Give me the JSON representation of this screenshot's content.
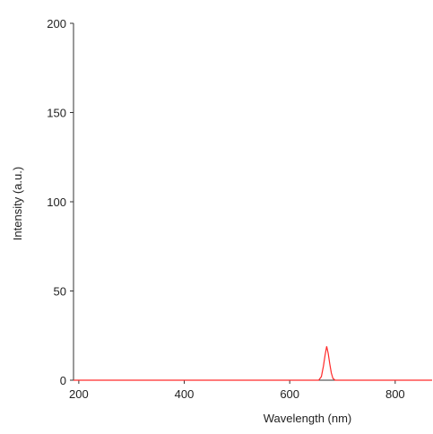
{
  "chart_data": {
    "type": "line",
    "xlabel": "Wavelength (nm)",
    "ylabel": "Intensity (a.u.)",
    "xlim": [
      190,
      870
    ],
    "ylim": [
      0,
      200
    ],
    "x_ticks": [
      200,
      400,
      600,
      800
    ],
    "y_ticks": [
      0,
      50,
      100,
      150,
      200
    ],
    "grid": false,
    "series": [
      {
        "color": "#ff2a2a",
        "points": [
          [
            190,
            0
          ],
          [
            640,
            0
          ],
          [
            655,
            0
          ],
          [
            660,
            2
          ],
          [
            664,
            8
          ],
          [
            667,
            14
          ],
          [
            670,
            19
          ],
          [
            673,
            15
          ],
          [
            676,
            9
          ],
          [
            679,
            4
          ],
          [
            682,
            1
          ],
          [
            686,
            0
          ],
          [
            700,
            0
          ],
          [
            870,
            0
          ]
        ]
      }
    ]
  }
}
